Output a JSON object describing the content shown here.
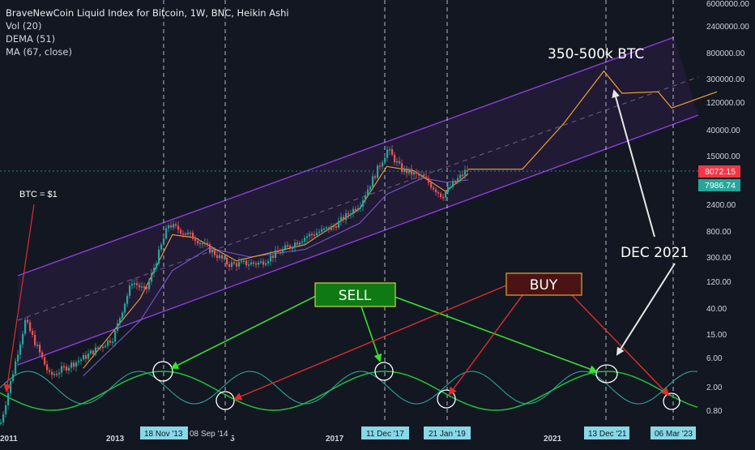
{
  "legend": {
    "title": "BraveNewCoin Liquid Index for Bitcoin, 1W, BNC, Heikin Ashi",
    "indicators": [
      "Vol (20)",
      "DEMA (51)",
      "MA (67, close)"
    ]
  },
  "colors": {
    "background": "#131722",
    "channel": "#8f3ddf",
    "projection": "#f2a030",
    "dema": "#f2a030",
    "ma": "#7a55c8",
    "cycle_green": "#22c03a",
    "cycle_teal": "#2aa59a",
    "sell_arrow": "#37e22e",
    "buy_arrow": "#e02d2d",
    "white_arrow": "#e8e8e8",
    "price_red": "#f23645",
    "price_teal": "#26a69a",
    "date_flag": "#87d8e8"
  },
  "chart_data": {
    "type": "line",
    "title": "BraveNewCoin Liquid Index for Bitcoin, 1W, BNC, Heikin Ashi",
    "y_scale": "log",
    "y_axis_labels": [
      "6000000.00",
      "2400000.00",
      "800000.00",
      "300000.00",
      "120000.00",
      "40000.00",
      "15000.00",
      "2400.00",
      "800.00",
      "300.00",
      "120.00",
      "40.00",
      "15.00",
      "6.00",
      "2.00",
      "0.80"
    ],
    "x_axis_labels": [
      "2011",
      "2013",
      "2017",
      "2021"
    ],
    "x_axis_label_fragment": "5",
    "date_flags": [
      "18 Nov '13",
      "08 Sep '14",
      "11 Dec '17",
      "21 Jan '19",
      "13 Dec '21",
      "06 Mar '23"
    ],
    "price_labels": [
      {
        "value": "8072.15",
        "color": "#f23645"
      },
      {
        "value": "7986.74",
        "color": "#26a69a"
      }
    ],
    "series": [
      {
        "name": "BraveNewCoin Liquid Index for Bitcoin",
        "points": [
          [
            "2011-01",
            0.5
          ],
          [
            "2011-06",
            25
          ],
          [
            "2011-11",
            3
          ],
          [
            "2012-06",
            6
          ],
          [
            "2012-12",
            13
          ],
          [
            "2013-04",
            120
          ],
          [
            "2013-07",
            80
          ],
          [
            "2013-12",
            1050
          ],
          [
            "2014-06",
            600
          ],
          [
            "2015-01",
            230
          ],
          [
            "2015-08",
            240
          ],
          [
            "2016-06",
            650
          ],
          [
            "2016-12",
            950
          ],
          [
            "2017-06",
            2500
          ],
          [
            "2017-12",
            19000
          ],
          [
            "2018-03",
            9000
          ],
          [
            "2018-08",
            6500
          ],
          [
            "2018-12",
            3300
          ],
          [
            "2019-05",
            8000
          ],
          [
            "2019-06",
            9200
          ]
        ]
      },
      {
        "name": "Projection",
        "points": [
          [
            "2019-06",
            9000
          ],
          [
            "2020-06",
            9000
          ],
          [
            "2021-03",
            50000
          ],
          [
            "2021-12",
            400000
          ],
          [
            "2022-04",
            170000
          ],
          [
            "2022-12",
            180000
          ],
          [
            "2023-03",
            95000
          ],
          [
            "2024-01",
            180000
          ]
        ]
      },
      {
        "name": "DEMA (51)",
        "points": [
          [
            "2012-06",
            4
          ],
          [
            "2013-06",
            60
          ],
          [
            "2014-01",
            700
          ],
          [
            "2014-06",
            620
          ],
          [
            "2015-03",
            260
          ],
          [
            "2016-06",
            480
          ],
          [
            "2017-06",
            2000
          ],
          [
            "2017-12",
            10000
          ],
          [
            "2018-06",
            8500
          ],
          [
            "2019-01",
            3900
          ],
          [
            "2019-06",
            7500
          ]
        ]
      },
      {
        "name": "MA (67, close)",
        "points": [
          [
            "2012-06",
            3
          ],
          [
            "2013-06",
            25
          ],
          [
            "2014-01",
            180
          ],
          [
            "2014-09",
            420
          ],
          [
            "2015-06",
            300
          ],
          [
            "2016-06",
            400
          ],
          [
            "2017-06",
            1100
          ],
          [
            "2017-12",
            3500
          ],
          [
            "2018-08",
            6500
          ],
          [
            "2019-01",
            5500
          ],
          [
            "2019-06",
            6000
          ]
        ]
      }
    ]
  },
  "annotations": {
    "btc_one": "BTC = $1",
    "target": "350-500k BTC",
    "dec2021": "DEC 2021",
    "sell": "SELL",
    "buy": "BUY"
  }
}
